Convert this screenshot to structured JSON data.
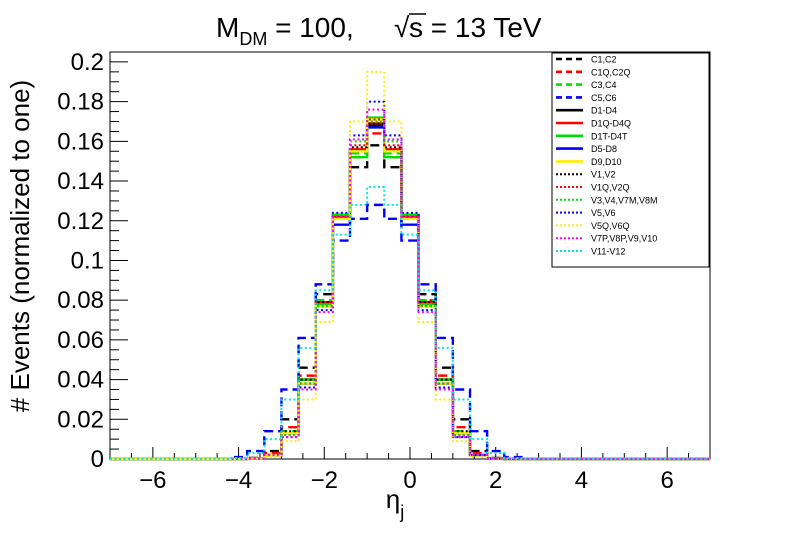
{
  "chart_data": {
    "type": "line",
    "title": {
      "m": "M",
      "m_sub": "DM",
      "m_rest": " = 100,",
      "sqrt": "√",
      "s_rest": "s = 13 TeV"
    },
    "xlabel": {
      "main": "η",
      "sub": "j"
    },
    "ylabel": "# Events (normalized to one)",
    "xlim": [
      -7,
      7
    ],
    "ylim": [
      0,
      0.205
    ],
    "x_ticks": [
      -6,
      -4,
      -2,
      0,
      2,
      4,
      6
    ],
    "x_tick_labels": [
      "−6",
      "−4",
      "−2",
      "0",
      "2",
      "4",
      "6"
    ],
    "y_ticks": [
      0,
      0.02,
      0.04,
      0.06,
      0.08,
      0.1,
      0.12,
      0.14,
      0.16,
      0.18,
      0.2
    ],
    "y_tick_labels": [
      "0",
      "0.02",
      "0.04",
      "0.06",
      "0.08",
      "0.1",
      "0.12",
      "0.14",
      "0.16",
      "0.18",
      "0.2"
    ],
    "grid": false,
    "legend_position": "top-right",
    "bin_edges": [
      -7,
      -6.6,
      -6.2,
      -5.8,
      -5.4,
      -5,
      -4.6,
      -4.2,
      -3.8,
      -3.4,
      -3,
      -2.6,
      -2.2,
      -1.8,
      -1.4,
      -1,
      -0.6,
      -0.2,
      0.2,
      0.6,
      1,
      1.4,
      1.8,
      2.2,
      2.6,
      3,
      3.4,
      3.8,
      4.2,
      4.6,
      5,
      5.4,
      5.8,
      6.2,
      6.6,
      7
    ],
    "series": [
      {
        "name": "C1,C2",
        "color": "#000000",
        "dash": "dashed",
        "values": [
          0,
          0,
          0,
          0,
          0,
          0,
          0,
          0,
          0.0005,
          0.004,
          0.02,
          0.046,
          0.083,
          0.121,
          0.147,
          0.158,
          0.147,
          0.121,
          0.083,
          0.046,
          0.02,
          0.004,
          0.0005,
          0,
          0,
          0,
          0,
          0,
          0,
          0,
          0,
          0,
          0,
          0,
          0
        ]
      },
      {
        "name": "C1Q,C2Q",
        "color": "#ff0000",
        "dash": "dashed",
        "values": [
          0,
          0,
          0,
          0,
          0,
          0,
          0,
          0,
          0.0003,
          0.003,
          0.016,
          0.042,
          0.08,
          0.122,
          0.152,
          0.164,
          0.152,
          0.122,
          0.08,
          0.042,
          0.016,
          0.003,
          0.0003,
          0,
          0,
          0,
          0,
          0,
          0,
          0,
          0,
          0,
          0,
          0,
          0
        ]
      },
      {
        "name": "C3,C4",
        "color": "#00dd00",
        "dash": "dashed",
        "values": [
          0,
          0,
          0,
          0,
          0,
          0,
          0,
          0,
          0.0002,
          0.002,
          0.014,
          0.04,
          0.08,
          0.123,
          0.154,
          0.167,
          0.154,
          0.123,
          0.08,
          0.04,
          0.014,
          0.002,
          0.0002,
          0,
          0,
          0,
          0,
          0,
          0,
          0,
          0,
          0,
          0,
          0,
          0
        ]
      },
      {
        "name": "C5,C6",
        "color": "#0000ff",
        "dash": "dashed",
        "values": [
          0,
          0,
          0,
          0,
          0,
          0,
          0,
          0.001,
          0.004,
          0.014,
          0.035,
          0.061,
          0.088,
          0.11,
          0.121,
          0.128,
          0.121,
          0.11,
          0.088,
          0.061,
          0.035,
          0.014,
          0.004,
          0.001,
          0,
          0,
          0,
          0,
          0,
          0,
          0,
          0,
          0,
          0,
          0
        ]
      },
      {
        "name": "D1-D4",
        "color": "#000000",
        "dash": "solid",
        "values": [
          0,
          0,
          0,
          0,
          0,
          0,
          0,
          0,
          0.0002,
          0.002,
          0.013,
          0.04,
          0.079,
          0.122,
          0.155,
          0.168,
          0.155,
          0.122,
          0.079,
          0.04,
          0.013,
          0.002,
          0.0002,
          0,
          0,
          0,
          0,
          0,
          0,
          0,
          0,
          0,
          0,
          0,
          0
        ]
      },
      {
        "name": "D1Q-D4Q",
        "color": "#ff0000",
        "dash": "solid",
        "values": [
          0,
          0,
          0,
          0,
          0,
          0,
          0,
          0,
          0.0002,
          0.002,
          0.013,
          0.04,
          0.079,
          0.122,
          0.156,
          0.169,
          0.156,
          0.122,
          0.079,
          0.04,
          0.013,
          0.002,
          0.0002,
          0,
          0,
          0,
          0,
          0,
          0,
          0,
          0,
          0,
          0,
          0,
          0
        ]
      },
      {
        "name": "D1T-D4T",
        "color": "#00dd00",
        "dash": "solid",
        "values": [
          0,
          0,
          0,
          0,
          0,
          0,
          0,
          0,
          0.0002,
          0.002,
          0.013,
          0.04,
          0.078,
          0.123,
          0.152,
          0.172,
          0.152,
          0.123,
          0.078,
          0.04,
          0.013,
          0.002,
          0.0002,
          0,
          0,
          0,
          0,
          0,
          0,
          0,
          0,
          0,
          0,
          0,
          0
        ]
      },
      {
        "name": "D5-D8",
        "color": "#0000ff",
        "dash": "solid",
        "values": [
          0,
          0,
          0,
          0,
          0,
          0,
          0,
          0,
          0.0002,
          0.002,
          0.013,
          0.038,
          0.077,
          0.118,
          0.155,
          0.167,
          0.155,
          0.118,
          0.077,
          0.038,
          0.013,
          0.002,
          0.0002,
          0,
          0,
          0,
          0,
          0,
          0,
          0,
          0,
          0,
          0,
          0,
          0
        ]
      },
      {
        "name": "D9,D10",
        "color": "#ffee00",
        "dash": "solid",
        "values": [
          0,
          0,
          0,
          0,
          0,
          0,
          0,
          0,
          0.0002,
          0.002,
          0.013,
          0.038,
          0.077,
          0.121,
          0.155,
          0.171,
          0.155,
          0.121,
          0.077,
          0.038,
          0.013,
          0.002,
          0.0002,
          0,
          0,
          0,
          0,
          0,
          0,
          0,
          0,
          0,
          0,
          0,
          0
        ]
      },
      {
        "name": "V1,V2",
        "color": "#000000",
        "dash": "dotted",
        "values": [
          0,
          0,
          0,
          0,
          0,
          0,
          0,
          0,
          0.0002,
          0.002,
          0.014,
          0.04,
          0.079,
          0.122,
          0.157,
          0.169,
          0.157,
          0.122,
          0.079,
          0.04,
          0.014,
          0.002,
          0.0002,
          0,
          0,
          0,
          0,
          0,
          0,
          0,
          0,
          0,
          0,
          0,
          0
        ]
      },
      {
        "name": "V1Q,V2Q",
        "color": "#ff0000",
        "dash": "dotted",
        "values": [
          0,
          0,
          0,
          0,
          0,
          0,
          0,
          0,
          0.0002,
          0.002,
          0.012,
          0.038,
          0.077,
          0.122,
          0.158,
          0.171,
          0.158,
          0.122,
          0.077,
          0.038,
          0.012,
          0.002,
          0.0002,
          0,
          0,
          0,
          0,
          0,
          0,
          0,
          0,
          0,
          0,
          0,
          0
        ]
      },
      {
        "name": "V3,V4,V7M,V8M",
        "color": "#00dd00",
        "dash": "dotted",
        "values": [
          0,
          0,
          0,
          0,
          0,
          0,
          0,
          0,
          0.0002,
          0.002,
          0.012,
          0.038,
          0.077,
          0.123,
          0.16,
          0.17,
          0.16,
          0.123,
          0.077,
          0.038,
          0.012,
          0.002,
          0.0002,
          0,
          0,
          0,
          0,
          0,
          0,
          0,
          0,
          0,
          0,
          0,
          0
        ]
      },
      {
        "name": "V5,V6",
        "color": "#0000ff",
        "dash": "dotted",
        "values": [
          0,
          0,
          0,
          0,
          0,
          0,
          0,
          0,
          0.0002,
          0.002,
          0.011,
          0.036,
          0.075,
          0.124,
          0.163,
          0.18,
          0.163,
          0.124,
          0.075,
          0.036,
          0.011,
          0.002,
          0.0002,
          0,
          0,
          0,
          0,
          0,
          0,
          0,
          0,
          0,
          0,
          0,
          0
        ]
      },
      {
        "name": "V5Q,V6Q",
        "color": "#ffee00",
        "dash": "dotted",
        "values": [
          0,
          0,
          0,
          0,
          0,
          0,
          0,
          0,
          0.0001,
          0.001,
          0.009,
          0.03,
          0.069,
          0.121,
          0.17,
          0.195,
          0.17,
          0.121,
          0.069,
          0.03,
          0.009,
          0.001,
          0.0001,
          0,
          0,
          0,
          0,
          0,
          0,
          0,
          0,
          0,
          0,
          0,
          0
        ]
      },
      {
        "name": "V7P,V8P,V9,V10",
        "color": "#ff00ff",
        "dash": "dotted",
        "values": [
          0,
          0,
          0,
          0,
          0,
          0,
          0,
          0,
          0.0002,
          0.002,
          0.011,
          0.035,
          0.074,
          0.122,
          0.161,
          0.176,
          0.161,
          0.122,
          0.074,
          0.035,
          0.011,
          0.002,
          0.0002,
          0,
          0,
          0,
          0,
          0,
          0,
          0,
          0,
          0,
          0,
          0,
          0
        ]
      },
      {
        "name": "V11-V12",
        "color": "#00e5e5",
        "dash": "dotted",
        "values": [
          0,
          0,
          0,
          0,
          0,
          0,
          0,
          0.0005,
          0.003,
          0.01,
          0.03,
          0.056,
          0.085,
          0.113,
          0.128,
          0.137,
          0.128,
          0.113,
          0.085,
          0.056,
          0.03,
          0.01,
          0.003,
          0.0005,
          0,
          0,
          0,
          0,
          0,
          0,
          0,
          0,
          0,
          0,
          0
        ]
      }
    ]
  }
}
